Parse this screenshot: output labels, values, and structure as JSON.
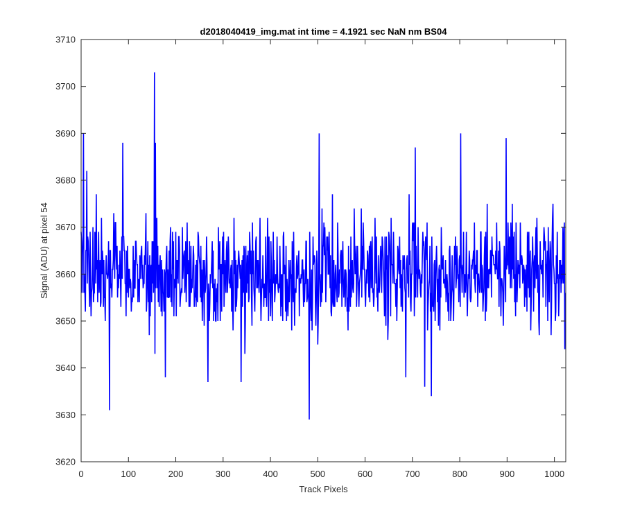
{
  "chart_data": {
    "type": "line",
    "title": "d2018040419_img.mat int time = 4.1921 sec  NaN nm BS04",
    "xlabel": "Track Pixels",
    "ylabel": "Signal (ADU) at pixel 54",
    "xlim": [
      0,
      1024
    ],
    "ylim": [
      3620,
      3710
    ],
    "xticks": [
      0,
      100,
      200,
      300,
      400,
      500,
      600,
      700,
      800,
      900,
      1000
    ],
    "yticks": [
      3620,
      3630,
      3640,
      3650,
      3660,
      3670,
      3680,
      3690,
      3700,
      3710
    ],
    "grid": false,
    "legend": "none",
    "series": [
      {
        "color": "#0000ff",
        "notable_points": [
          {
            "x": 5,
            "y": 3690
          },
          {
            "x": 12,
            "y": 3682
          },
          {
            "x": 60,
            "y": 3631
          },
          {
            "x": 88,
            "y": 3688
          },
          {
            "x": 155,
            "y": 3703
          },
          {
            "x": 156,
            "y": 3643
          },
          {
            "x": 157,
            "y": 3688
          },
          {
            "x": 178,
            "y": 3638
          },
          {
            "x": 268,
            "y": 3637
          },
          {
            "x": 338,
            "y": 3637
          },
          {
            "x": 482,
            "y": 3629
          },
          {
            "x": 503,
            "y": 3690
          },
          {
            "x": 686,
            "y": 3638
          },
          {
            "x": 706,
            "y": 3687
          },
          {
            "x": 726,
            "y": 3636
          },
          {
            "x": 740,
            "y": 3634
          },
          {
            "x": 802,
            "y": 3690
          },
          {
            "x": 898,
            "y": 3689
          },
          {
            "x": 1018,
            "y": 3670
          },
          {
            "x": 1022,
            "y": 3644
          }
        ],
        "baseline_mean": 3660,
        "typical_range": [
          3648,
          3672
        ],
        "point_count": 1024
      }
    ]
  }
}
